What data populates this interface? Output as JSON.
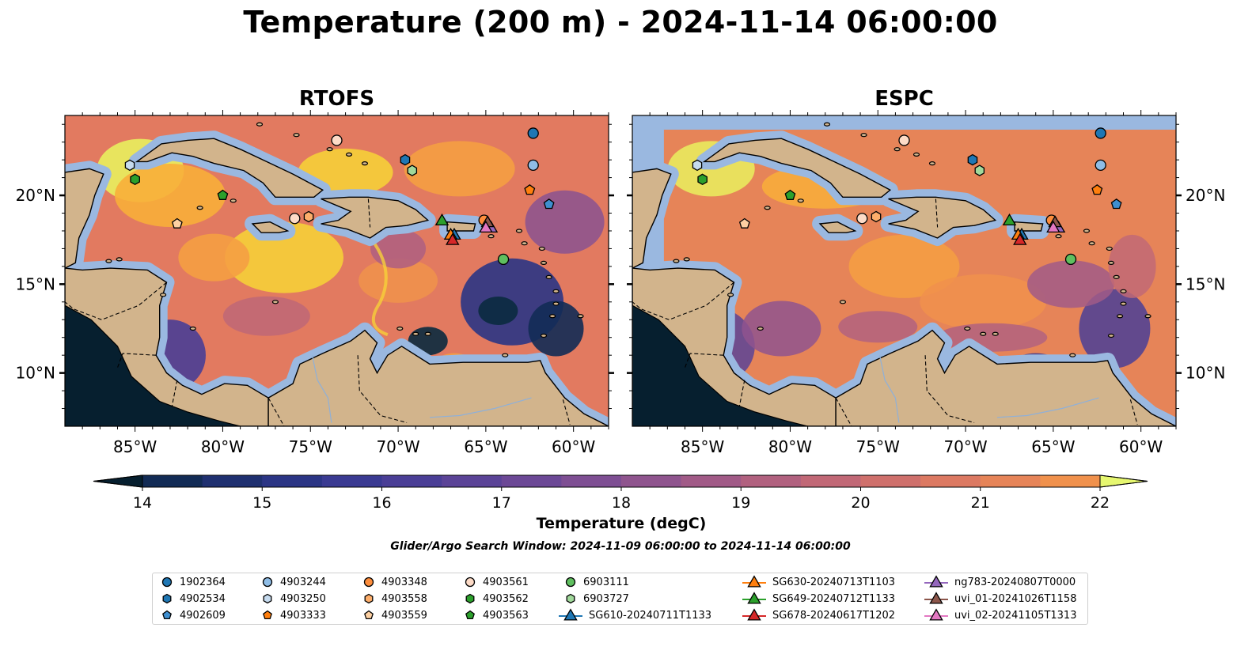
{
  "title": "Temperature (200 m) - 2024-11-14 06:00:00",
  "panels": [
    {
      "title": "RTOFS",
      "model": "rtofs"
    },
    {
      "title": "ESPC",
      "model": "espc"
    }
  ],
  "colorbar": {
    "label": "Temperature (degC)",
    "min": 14,
    "max": 22,
    "step": 0.5,
    "extend": "both",
    "ticks": [
      14,
      15,
      16,
      17,
      18,
      19,
      20,
      21,
      22
    ],
    "colors": [
      "#0a2a3f",
      "#122b55",
      "#1f3070",
      "#2b3585",
      "#3a3a92",
      "#4a3e96",
      "#5b4397",
      "#6c4896",
      "#7e4e93",
      "#8f548e",
      "#a15a87",
      "#b1617f",
      "#c16876",
      "#cf706c",
      "#dc7962",
      "#e68458",
      "#f0914c",
      "#f59f42",
      "#f8ae3a",
      "#f9be35",
      "#f6cf39",
      "#f0e04a",
      "#e9f05e"
    ],
    "under_color": "#061f2f",
    "over_color": "#e6f770"
  },
  "search_window": "Glider/Argo Search Window: 2024-11-09 06:00:00 to 2024-11-14 06:00:00",
  "map": {
    "lon_range": [
      -89,
      -58
    ],
    "lat_range": [
      7,
      24.5
    ],
    "xticks": [
      -85,
      -80,
      -75,
      -70,
      -65,
      -60
    ],
    "xtick_labels": [
      "85°W",
      "80°W",
      "75°W",
      "70°W",
      "65°W",
      "60°W"
    ],
    "yticks": [
      10,
      15,
      20
    ],
    "ytick_labels": [
      "10°N",
      "15°N",
      "20°N"
    ],
    "land_color": "#d2b48c",
    "shelf_color": "#9ab8e0"
  },
  "chart_data": {
    "type": "scatter",
    "x_label": "",
    "y_label": "",
    "series": [
      {
        "name": "1902364",
        "marker": "circle",
        "color": "#1f77b4",
        "points": [
          [
            -62.3,
            23.5
          ]
        ]
      },
      {
        "name": "4902534",
        "marker": "hexagon",
        "color": "#1f77b4",
        "points": [
          [
            -69.6,
            22.0
          ]
        ]
      },
      {
        "name": "4902609",
        "marker": "pentagon",
        "color": "#3f8fd0",
        "points": [
          [
            -61.4,
            19.5
          ]
        ]
      },
      {
        "name": "4903244",
        "marker": "circle",
        "color": "#8fbde6",
        "points": [
          [
            -62.3,
            21.7
          ]
        ]
      },
      {
        "name": "4903250",
        "marker": "hexagon",
        "color": "#c6dbef",
        "points": [
          [
            -85.3,
            21.7
          ]
        ]
      },
      {
        "name": "4903333",
        "marker": "pentagon",
        "color": "#ff7f0e",
        "points": [
          [
            -62.5,
            20.3
          ]
        ]
      },
      {
        "name": "4903348",
        "marker": "circle",
        "color": "#fd8d3c",
        "points": [
          [
            -65.1,
            18.6
          ]
        ]
      },
      {
        "name": "4903558",
        "marker": "hexagon",
        "color": "#fdae6b",
        "points": [
          [
            -75.1,
            18.8
          ]
        ]
      },
      {
        "name": "4903559",
        "marker": "pentagon",
        "color": "#fdd0a2",
        "points": [
          [
            -82.6,
            18.4
          ]
        ]
      },
      {
        "name": "4903561",
        "marker": "circle",
        "color": "#fddbc7",
        "points": [
          [
            -73.5,
            23.1
          ],
          [
            -75.9,
            18.7
          ]
        ]
      },
      {
        "name": "4903562",
        "marker": "hexagon",
        "color": "#2ca02c",
        "points": [
          [
            -85.0,
            20.9
          ]
        ]
      },
      {
        "name": "4903563",
        "marker": "pentagon",
        "color": "#2ca02c",
        "points": [
          [
            -80.0,
            20.0
          ]
        ]
      },
      {
        "name": "6903111",
        "marker": "circle",
        "color": "#5fbf5f",
        "points": [
          [
            -64.0,
            16.4
          ]
        ]
      },
      {
        "name": "6903727",
        "marker": "hexagon",
        "color": "#a1d99b",
        "points": [
          [
            -69.2,
            21.4
          ]
        ]
      },
      {
        "name": "SG610-20240711T1133",
        "marker": "triangle",
        "color": "#1f77b4",
        "points": [
          [
            -66.8,
            17.8
          ]
        ]
      },
      {
        "name": "SG630-20240713T1103",
        "marker": "triangle",
        "color": "#ff7f0e",
        "points": [
          [
            -67.0,
            17.8
          ]
        ]
      },
      {
        "name": "SG649-20240712T1133",
        "marker": "triangle",
        "color": "#2ca02c",
        "points": [
          [
            -67.5,
            18.6
          ]
        ]
      },
      {
        "name": "SG678-20240617T1202",
        "marker": "triangle",
        "color": "#d62728",
        "points": [
          [
            -66.9,
            17.5
          ]
        ]
      },
      {
        "name": "ng783-20240807T0000",
        "marker": "triangle",
        "color": "#9467bd",
        "points": [
          [
            -64.7,
            18.2
          ]
        ]
      },
      {
        "name": "uvi_01-20241026T1158",
        "marker": "triangle",
        "color": "#8c564b",
        "points": [
          [
            -64.9,
            18.5
          ]
        ]
      },
      {
        "name": "uvi_02-20241105T1313",
        "marker": "triangle",
        "color": "#e377c2",
        "points": [
          [
            -65.0,
            18.2
          ]
        ]
      }
    ]
  }
}
